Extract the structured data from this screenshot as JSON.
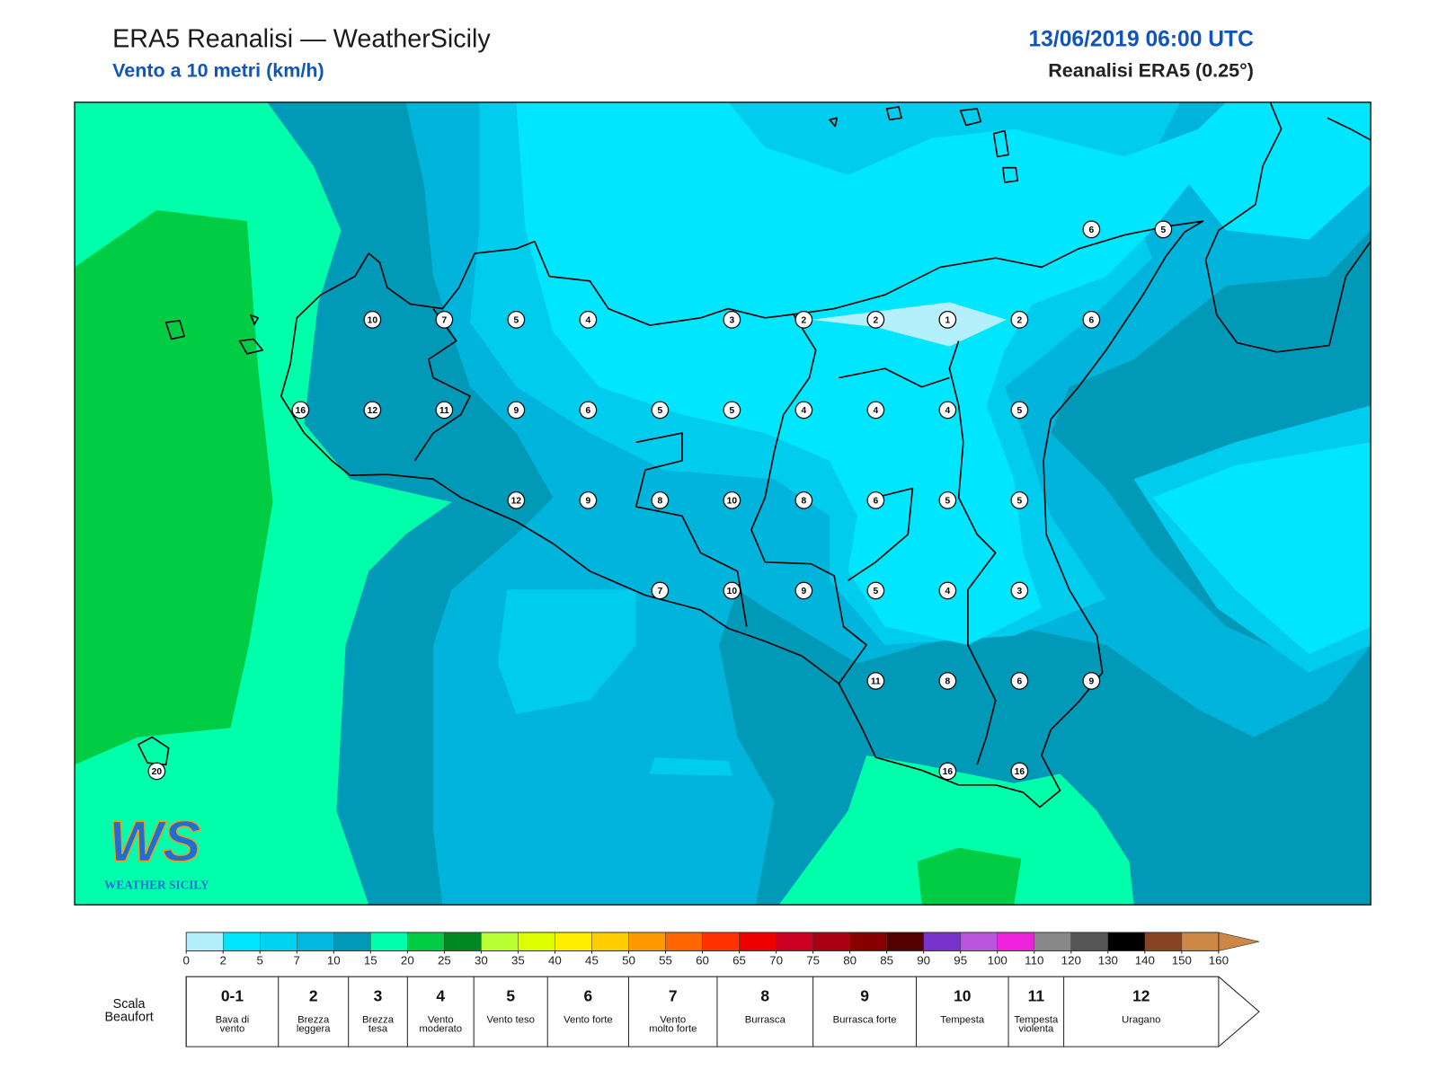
{
  "header": {
    "title": "ERA5 Reanalisi — WeatherSicily",
    "subtitle": "Vento a 10 metri (km/h)",
    "datetime": "13/06/2019 06:00 UTC",
    "source": "Reanalisi ERA5 (0.25°)"
  },
  "map": {
    "wind_grid": [
      [
        null,
        null,
        null,
        null,
        null,
        null,
        null,
        null,
        null,
        null,
        null,
        null,
        null,
        6,
        5
      ],
      [
        null,
        null,
        null,
        10,
        7,
        5,
        4,
        null,
        3,
        2,
        2,
        1,
        2,
        6,
        null
      ],
      [
        null,
        null,
        16,
        12,
        11,
        9,
        6,
        5,
        5,
        4,
        4,
        4,
        5,
        null,
        null
      ],
      [
        null,
        null,
        null,
        null,
        null,
        12,
        9,
        8,
        10,
        8,
        6,
        5,
        5,
        null,
        null
      ],
      [
        null,
        null,
        null,
        null,
        null,
        null,
        null,
        7,
        10,
        9,
        5,
        4,
        3,
        null,
        null
      ],
      [
        null,
        null,
        null,
        null,
        null,
        null,
        null,
        null,
        null,
        null,
        11,
        8,
        6,
        9,
        null
      ],
      [
        20,
        null,
        null,
        null,
        null,
        null,
        null,
        null,
        null,
        null,
        null,
        16,
        16,
        null,
        null
      ]
    ]
  },
  "logo": {
    "mark": "WS",
    "name": "WEATHER SICILY"
  },
  "colorbar": {
    "ticks": [
      0,
      2,
      5,
      7,
      10,
      15,
      20,
      25,
      30,
      35,
      40,
      45,
      50,
      55,
      60,
      65,
      70,
      75,
      80,
      85,
      90,
      95,
      100,
      110,
      120,
      130,
      140,
      150,
      160
    ],
    "colors": [
      "#b3f0fb",
      "#00e6ff",
      "#00d2f2",
      "#00b8e0",
      "#0099b8",
      "#00ffaa",
      "#00cc44",
      "#008822",
      "#b8ff33",
      "#ddff00",
      "#ffee00",
      "#ffcc00",
      "#ff9900",
      "#ff6600",
      "#ff3300",
      "#ee0000",
      "#cc0022",
      "#aa0011",
      "#880000",
      "#550000",
      "#7733cc",
      "#bb55dd",
      "#ee22dd",
      "#888888",
      "#555555",
      "#000000",
      "#884422",
      "#cc8844"
    ]
  },
  "beaufort": {
    "title": "Scala Beaufort",
    "edges": [
      0,
      6,
      12,
      20,
      29,
      39,
      50,
      62,
      75,
      89,
      103,
      118,
      160
    ],
    "levels": [
      {
        "force": "0-1",
        "description": "Bava di vento"
      },
      {
        "force": 2,
        "description": "Brezza leggera"
      },
      {
        "force": 3,
        "description": "Brezza tesa"
      },
      {
        "force": 4,
        "description": "Vento moderato"
      },
      {
        "force": 5,
        "description": "Vento teso"
      },
      {
        "force": 6,
        "description": "Vento forte"
      },
      {
        "force": 7,
        "description": "Vento molto forte"
      },
      {
        "force": 8,
        "description": "Burrasca"
      },
      {
        "force": 9,
        "description": "Burrasca forte"
      },
      {
        "force": 10,
        "description": "Tempesta"
      },
      {
        "force": 11,
        "description": "Tempesta violenta"
      },
      {
        "force": 12,
        "description": "Uragano"
      }
    ]
  }
}
